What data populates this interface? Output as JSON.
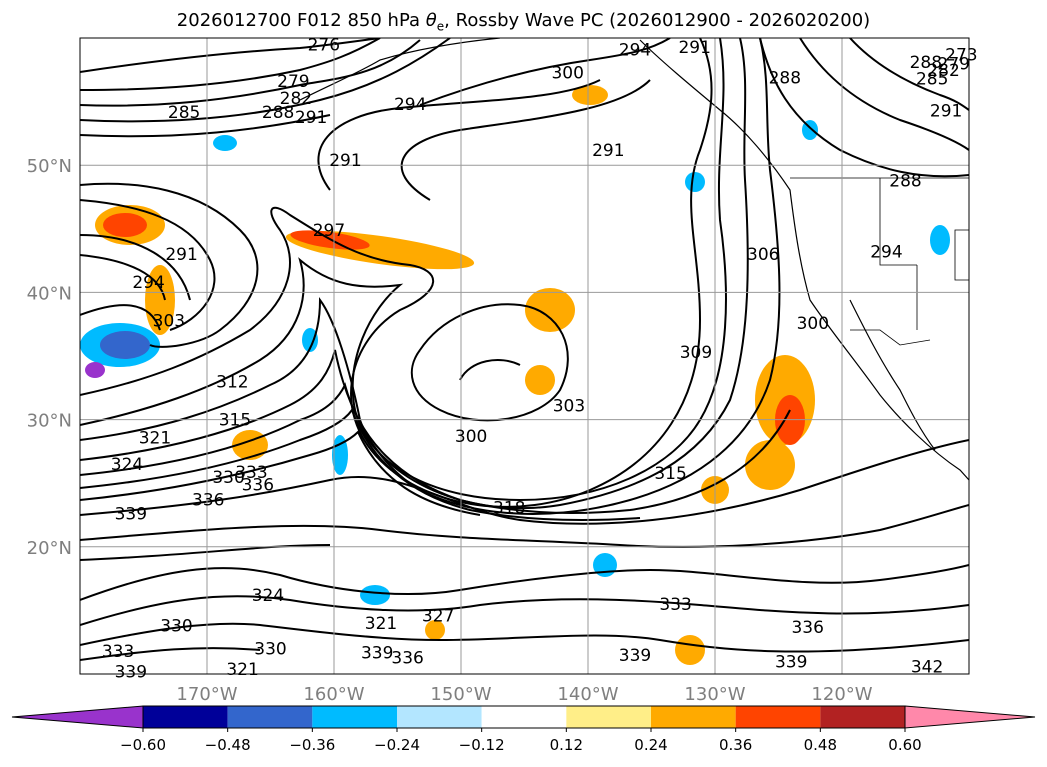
{
  "title": {
    "prefix": "2026012700 F012 850 hPa ",
    "symbol": "θ",
    "subscript": "e",
    "suffix": ", Rossby Wave PC (2026012900 - 2026020200)"
  },
  "map": {
    "lon_range": [
      -180,
      -110
    ],
    "lat_range": [
      10,
      60
    ],
    "grid": true,
    "lon_ticks": [
      "170°W",
      "160°W",
      "150°W",
      "140°W",
      "130°W",
      "120°W"
    ],
    "lat_ticks": [
      "20°N",
      "30°N",
      "40°N",
      "50°N"
    ],
    "contour_labels": [
      {
        "text": "276",
        "lon": -160.8,
        "lat": 59.5
      },
      {
        "text": "279",
        "lon": -163.2,
        "lat": 56.6
      },
      {
        "text": "282",
        "lon": -163.0,
        "lat": 55.3
      },
      {
        "text": "285",
        "lon": -171.8,
        "lat": 54.2
      },
      {
        "text": "288",
        "lon": -164.4,
        "lat": 54.2
      },
      {
        "text": "291",
        "lon": -161.8,
        "lat": 53.8
      },
      {
        "text": "294",
        "lon": -154.0,
        "lat": 54.8
      },
      {
        "text": "300",
        "lon": -141.6,
        "lat": 57.3
      },
      {
        "text": "294",
        "lon": -136.3,
        "lat": 59.1
      },
      {
        "text": "291",
        "lon": -131.6,
        "lat": 59.3
      },
      {
        "text": "291",
        "lon": -138.4,
        "lat": 51.2
      },
      {
        "text": "291",
        "lon": -159.1,
        "lat": 50.4
      },
      {
        "text": "297",
        "lon": -160.4,
        "lat": 44.9
      },
      {
        "text": "291",
        "lon": -172.0,
        "lat": 43.0
      },
      {
        "text": "294",
        "lon": -174.6,
        "lat": 40.8
      },
      {
        "text": "303",
        "lon": -173.0,
        "lat": 37.8
      },
      {
        "text": "306",
        "lon": -126.2,
        "lat": 43.0
      },
      {
        "text": "300",
        "lon": -122.3,
        "lat": 37.6
      },
      {
        "text": "309",
        "lon": -131.5,
        "lat": 35.3
      },
      {
        "text": "312",
        "lon": -168.0,
        "lat": 33.0
      },
      {
        "text": "303",
        "lon": -141.5,
        "lat": 31.1
      },
      {
        "text": "300",
        "lon": -149.2,
        "lat": 28.7
      },
      {
        "text": "315",
        "lon": -167.8,
        "lat": 30.0
      },
      {
        "text": "321",
        "lon": -174.1,
        "lat": 28.6
      },
      {
        "text": "324",
        "lon": -176.3,
        "lat": 26.5
      },
      {
        "text": "330",
        "lon": -168.3,
        "lat": 25.5
      },
      {
        "text": "333",
        "lon": -166.5,
        "lat": 25.9
      },
      {
        "text": "336",
        "lon": -166.0,
        "lat": 24.9
      },
      {
        "text": "336",
        "lon": -169.9,
        "lat": 23.7
      },
      {
        "text": "339",
        "lon": -176.0,
        "lat": 22.6
      },
      {
        "text": "315",
        "lon": -133.5,
        "lat": 25.8
      },
      {
        "text": "318",
        "lon": -146.2,
        "lat": 23.1
      },
      {
        "text": "324",
        "lon": -165.2,
        "lat": 16.2
      },
      {
        "text": "330",
        "lon": -172.4,
        "lat": 13.8
      },
      {
        "text": "321",
        "lon": -156.3,
        "lat": 14.0
      },
      {
        "text": "327",
        "lon": -151.8,
        "lat": 14.6
      },
      {
        "text": "333",
        "lon": -133.1,
        "lat": 15.5
      },
      {
        "text": "336",
        "lon": -122.7,
        "lat": 13.7
      },
      {
        "text": "333",
        "lon": -177.0,
        "lat": 11.8
      },
      {
        "text": "339",
        "lon": -156.6,
        "lat": 11.7
      },
      {
        "text": "336",
        "lon": -154.2,
        "lat": 11.3
      },
      {
        "text": "339",
        "lon": -176.0,
        "lat": 10.2
      },
      {
        "text": "330",
        "lon": -165.0,
        "lat": 12.0
      },
      {
        "text": "339",
        "lon": -136.3,
        "lat": 11.5
      },
      {
        "text": "339",
        "lon": -124.0,
        "lat": 11.0
      },
      {
        "text": "342",
        "lon": -113.3,
        "lat": 10.6
      },
      {
        "text": "321",
        "lon": -167.2,
        "lat": 10.4
      },
      {
        "text": "288",
        "lon": -113.4,
        "lat": 58.1
      },
      {
        "text": "285",
        "lon": -112.9,
        "lat": 56.8
      },
      {
        "text": "282",
        "lon": -112.0,
        "lat": 57.5
      },
      {
        "text": "279",
        "lon": -111.2,
        "lat": 58.0
      },
      {
        "text": "273",
        "lon": -110.6,
        "lat": 58.7
      },
      {
        "text": "291",
        "lon": -111.8,
        "lat": 54.3
      },
      {
        "text": "288",
        "lon": -115.0,
        "lat": 48.8
      },
      {
        "text": "294",
        "lon": -116.5,
        "lat": 43.2
      },
      {
        "text": "288",
        "lon": -124.5,
        "lat": 56.9
      }
    ]
  },
  "colorbar": {
    "tick_labels": [
      "−0.60",
      "−0.48",
      "−0.36",
      "−0.24",
      "−0.12",
      "0.12",
      "0.24",
      "0.36",
      "0.48",
      "0.60"
    ],
    "colors": [
      "#9933cc",
      "#000099",
      "#3366cc",
      "#00bbff",
      "#b3e6ff",
      "#ffffff",
      "#ffee88",
      "#ffaa00",
      "#ff4400",
      "#b22222",
      "#ff88aa"
    ]
  }
}
